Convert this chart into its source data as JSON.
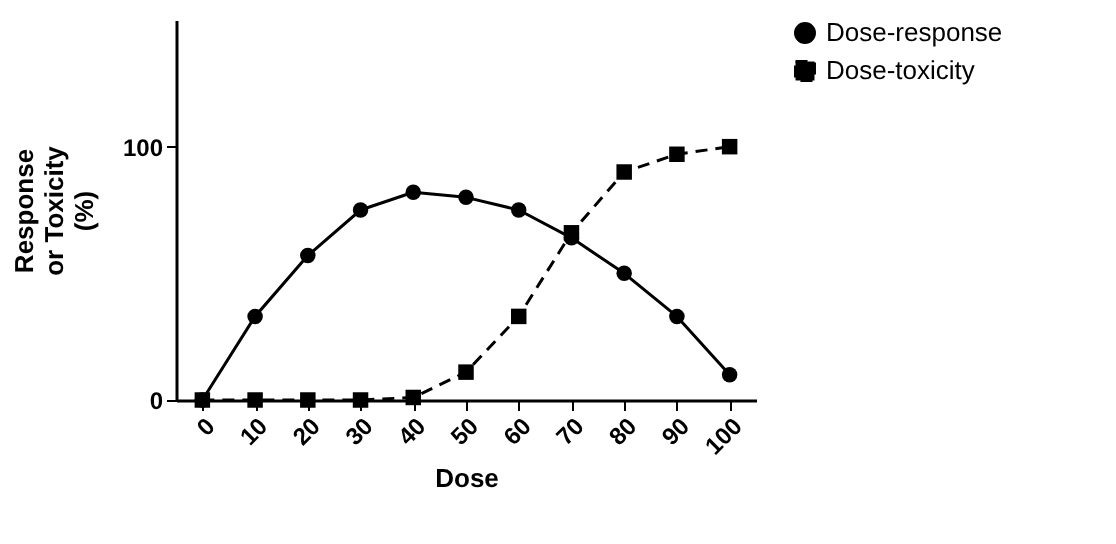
{
  "chart_data": {
    "type": "line",
    "xlabel": "Dose",
    "ylabel": "Response\nor Toxicity\n(%)",
    "categories": [
      "0",
      "10",
      "20",
      "30",
      "40",
      "50",
      "60",
      "70",
      "80",
      "90",
      "100"
    ],
    "series": [
      {
        "name": "Dose-response",
        "color": "#000000",
        "marker": "circle",
        "line_style": "solid",
        "values": [
          0,
          33,
          57,
          75,
          82,
          80,
          75,
          64,
          50,
          33,
          10
        ]
      },
      {
        "name": "Dose-toxicity",
        "color": "#000000",
        "marker": "square",
        "line_style": "dashed",
        "values": [
          0,
          0,
          0,
          0,
          1,
          11,
          33,
          66,
          90,
          97,
          100
        ]
      }
    ],
    "ylim": [
      0,
      150
    ],
    "yticks": [
      0,
      100
    ],
    "grid": false,
    "legend": "top right"
  }
}
